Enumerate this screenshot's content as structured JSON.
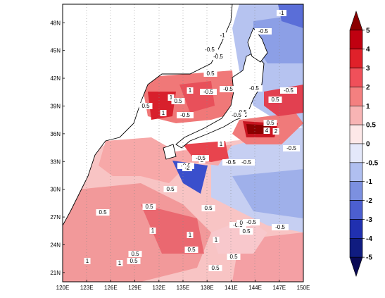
{
  "map": {
    "lon_ticks": [
      "120E",
      "123E",
      "126E",
      "129E",
      "132E",
      "135E",
      "138E",
      "141E",
      "144E",
      "147E",
      "150E"
    ],
    "lat_ticks": [
      "21N",
      "24N",
      "27N",
      "30N",
      "33N",
      "36N",
      "39N",
      "42N",
      "45N",
      "48N"
    ],
    "lon_range": [
      120,
      150
    ],
    "lat_range": [
      20,
      50
    ]
  },
  "colorbar": {
    "levels": [
      "5",
      "4",
      "3",
      "2",
      "1",
      "0.5",
      "0",
      "-0.5",
      "-1",
      "-2",
      "-3",
      "-4",
      "-5"
    ],
    "colors": [
      "#8b0000",
      "#c00010",
      "#e0212a",
      "#f0505a",
      "#f48080",
      "#f8b4b4",
      "#fde8e8",
      "#e4e8fa",
      "#b0bff0",
      "#7c90e0",
      "#4c5fd0",
      "#2030b0",
      "#101c80",
      "#0a0a55"
    ]
  },
  "contour_labels": [
    {
      "text": "-1"
    },
    {
      "text": "-0.5"
    },
    {
      "text": "-1"
    },
    {
      "text": "-0.5"
    },
    {
      "text": "-0.5"
    },
    {
      "text": "0.5"
    },
    {
      "text": "-0.5"
    },
    {
      "text": "-0.5"
    },
    {
      "text": "1"
    },
    {
      "text": "0.5"
    },
    {
      "text": "1"
    },
    {
      "text": "-0.5"
    },
    {
      "text": "1"
    },
    {
      "text": "0.5"
    },
    {
      "text": "-0.5"
    },
    {
      "text": "0.5"
    },
    {
      "text": "-0.5"
    },
    {
      "text": "0.5"
    },
    {
      "text": "-0.5"
    },
    {
      "text": "2"
    },
    {
      "text": "0.5"
    },
    {
      "text": "-0.5"
    },
    {
      "text": "4"
    },
    {
      "text": "-0.5"
    },
    {
      "text": "1"
    },
    {
      "text": "-0.5"
    },
    {
      "text": "2"
    },
    {
      "text": "-2"
    },
    {
      "text": "-0.5"
    },
    {
      "text": "-0.5"
    },
    {
      "text": "0.5"
    },
    {
      "text": "0.5"
    },
    {
      "text": "-0.5"
    },
    {
      "text": "0.5"
    },
    {
      "text": "0.5"
    },
    {
      "text": "1"
    },
    {
      "text": "-0.5"
    },
    {
      "text": "0.5"
    },
    {
      "text": "0.5"
    },
    {
      "text": "-0.5"
    },
    {
      "text": "1"
    },
    {
      "text": "0.5"
    },
    {
      "text": "0.5"
    },
    {
      "text": "1"
    },
    {
      "text": "1"
    },
    {
      "text": "0.5"
    },
    {
      "text": "0.5"
    },
    {
      "text": "1"
    },
    {
      "text": "0.5"
    }
  ]
}
